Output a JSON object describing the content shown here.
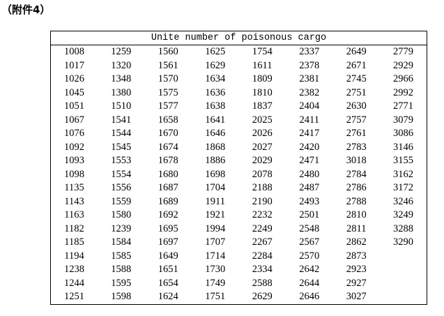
{
  "header": {
    "title": "（附件4）"
  },
  "table": {
    "title": "Unite number of poisonous cargo",
    "rows": [
      [
        1008,
        1259,
        1560,
        1625,
        1754,
        2337,
        2649,
        2779
      ],
      [
        1017,
        1320,
        1561,
        1629,
        1611,
        2378,
        2671,
        2929
      ],
      [
        1026,
        1348,
        1570,
        1634,
        1809,
        2381,
        2745,
        2966
      ],
      [
        1045,
        1380,
        1575,
        1636,
        1810,
        2382,
        2751,
        2992
      ],
      [
        1051,
        1510,
        1577,
        1638,
        1837,
        2404,
        2630,
        2771
      ],
      [
        1067,
        1541,
        1658,
        1641,
        2025,
        2411,
        2757,
        3079
      ],
      [
        1076,
        1544,
        1670,
        1646,
        2026,
        2417,
        2761,
        3086
      ],
      [
        1092,
        1545,
        1674,
        1868,
        2027,
        2420,
        2783,
        3146
      ],
      [
        1093,
        1553,
        1678,
        1886,
        2029,
        2471,
        3018,
        3155
      ],
      [
        1098,
        1554,
        1680,
        1698,
        2078,
        2480,
        2784,
        3162
      ],
      [
        1135,
        1556,
        1687,
        1704,
        2188,
        2487,
        2786,
        3172
      ],
      [
        1143,
        1559,
        1689,
        1911,
        2190,
        2493,
        2788,
        3246
      ],
      [
        1163,
        1580,
        1692,
        1921,
        2232,
        2501,
        2810,
        3249
      ],
      [
        1182,
        1239,
        1695,
        1994,
        2249,
        2548,
        2811,
        3288
      ],
      [
        1185,
        1584,
        1697,
        1707,
        2267,
        2567,
        2862,
        3290
      ],
      [
        1194,
        1585,
        1649,
        1714,
        2284,
        2570,
        2873
      ],
      [
        1238,
        1588,
        1651,
        1730,
        2334,
        2642,
        2923
      ],
      [
        1244,
        1595,
        1654,
        1749,
        2588,
        2644,
        2927
      ],
      [
        1251,
        1598,
        1624,
        1751,
        2629,
        2646,
        3027
      ]
    ]
  }
}
